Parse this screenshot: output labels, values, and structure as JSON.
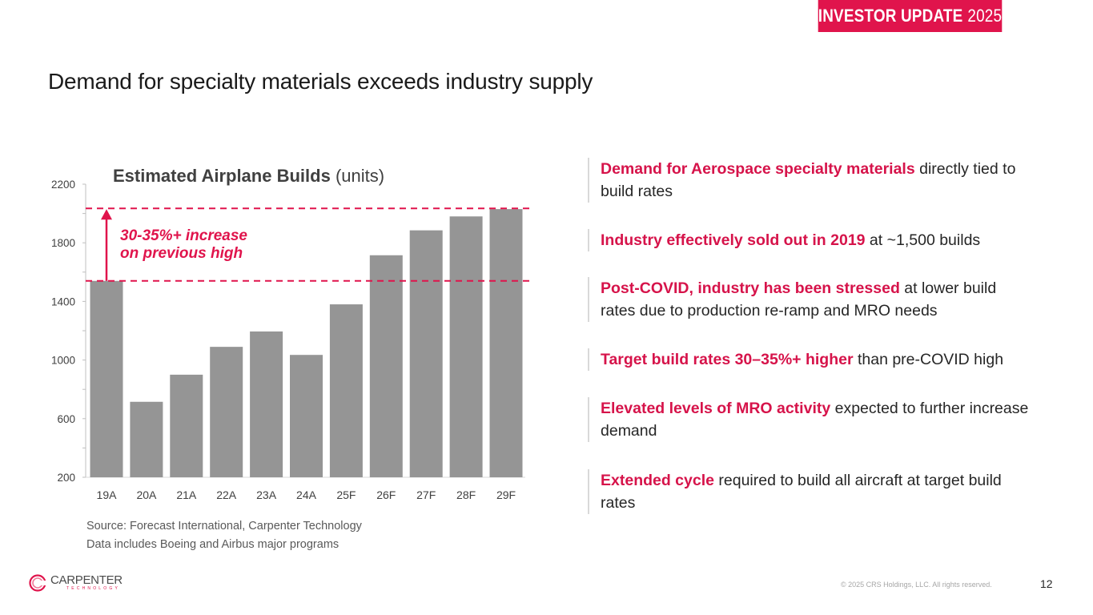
{
  "header": {
    "badge_main": "INVESTOR UPDATE",
    "badge_year": "2025",
    "page_title": "Demand for specialty materials exceeds industry supply"
  },
  "chart_data": {
    "type": "bar",
    "title_bold": "Estimated Airplane Builds",
    "title_unit": "(units)",
    "categories": [
      "19A",
      "20A",
      "21A",
      "22A",
      "23A",
      "24A",
      "25F",
      "26F",
      "27F",
      "28F",
      "29F"
    ],
    "values": [
      1540,
      715,
      900,
      1090,
      1195,
      1035,
      1380,
      1715,
      1885,
      1980,
      2030
    ],
    "ylim": [
      200,
      2200
    ],
    "yticks": [
      200,
      600,
      1000,
      1400,
      1800,
      2200
    ],
    "yticks_minor": [
      400,
      800,
      1200,
      1600,
      2000
    ],
    "xlabel": "",
    "ylabel": "",
    "grid": false,
    "bar_color": "#959595",
    "reference_lines": [
      {
        "name": "previous-high",
        "value": 1540
      },
      {
        "name": "target-high",
        "value": 2035
      }
    ],
    "annotation": {
      "line1": "30-35%+ increase",
      "line2": "on previous high",
      "color": "#e0144c"
    }
  },
  "source": {
    "line1": "Source: Forecast International, Carpenter Technology",
    "line2": "Data includes Boeing and Airbus major programs"
  },
  "bullets": [
    {
      "highlight": "Demand for Aerospace specialty materials",
      "rest": " directly tied to build rates"
    },
    {
      "highlight": "Industry effectively sold out in 2019",
      "rest": " at ~1,500 builds"
    },
    {
      "highlight": "Post-COVID, industry has been stressed",
      "rest": " at lower build rates due to production re-ramp and MRO needs"
    },
    {
      "highlight": "Target build rates 30–35%+ higher",
      "rest": " than pre-COVID high"
    },
    {
      "highlight": "Elevated levels of MRO activity",
      "rest": " expected to further increase demand"
    },
    {
      "highlight": "Extended cycle",
      "rest": " required to build all aircraft at target build rates"
    }
  ],
  "footer": {
    "logo_name": "CARPENTER",
    "logo_sub": "TECHNOLOGY",
    "copyright": "© 2025 CRS Holdings, LLC. All rights reserved.",
    "page_number": "12"
  },
  "colors": {
    "accent": "#e0144c",
    "text": "#262626",
    "bar": "#959595"
  }
}
